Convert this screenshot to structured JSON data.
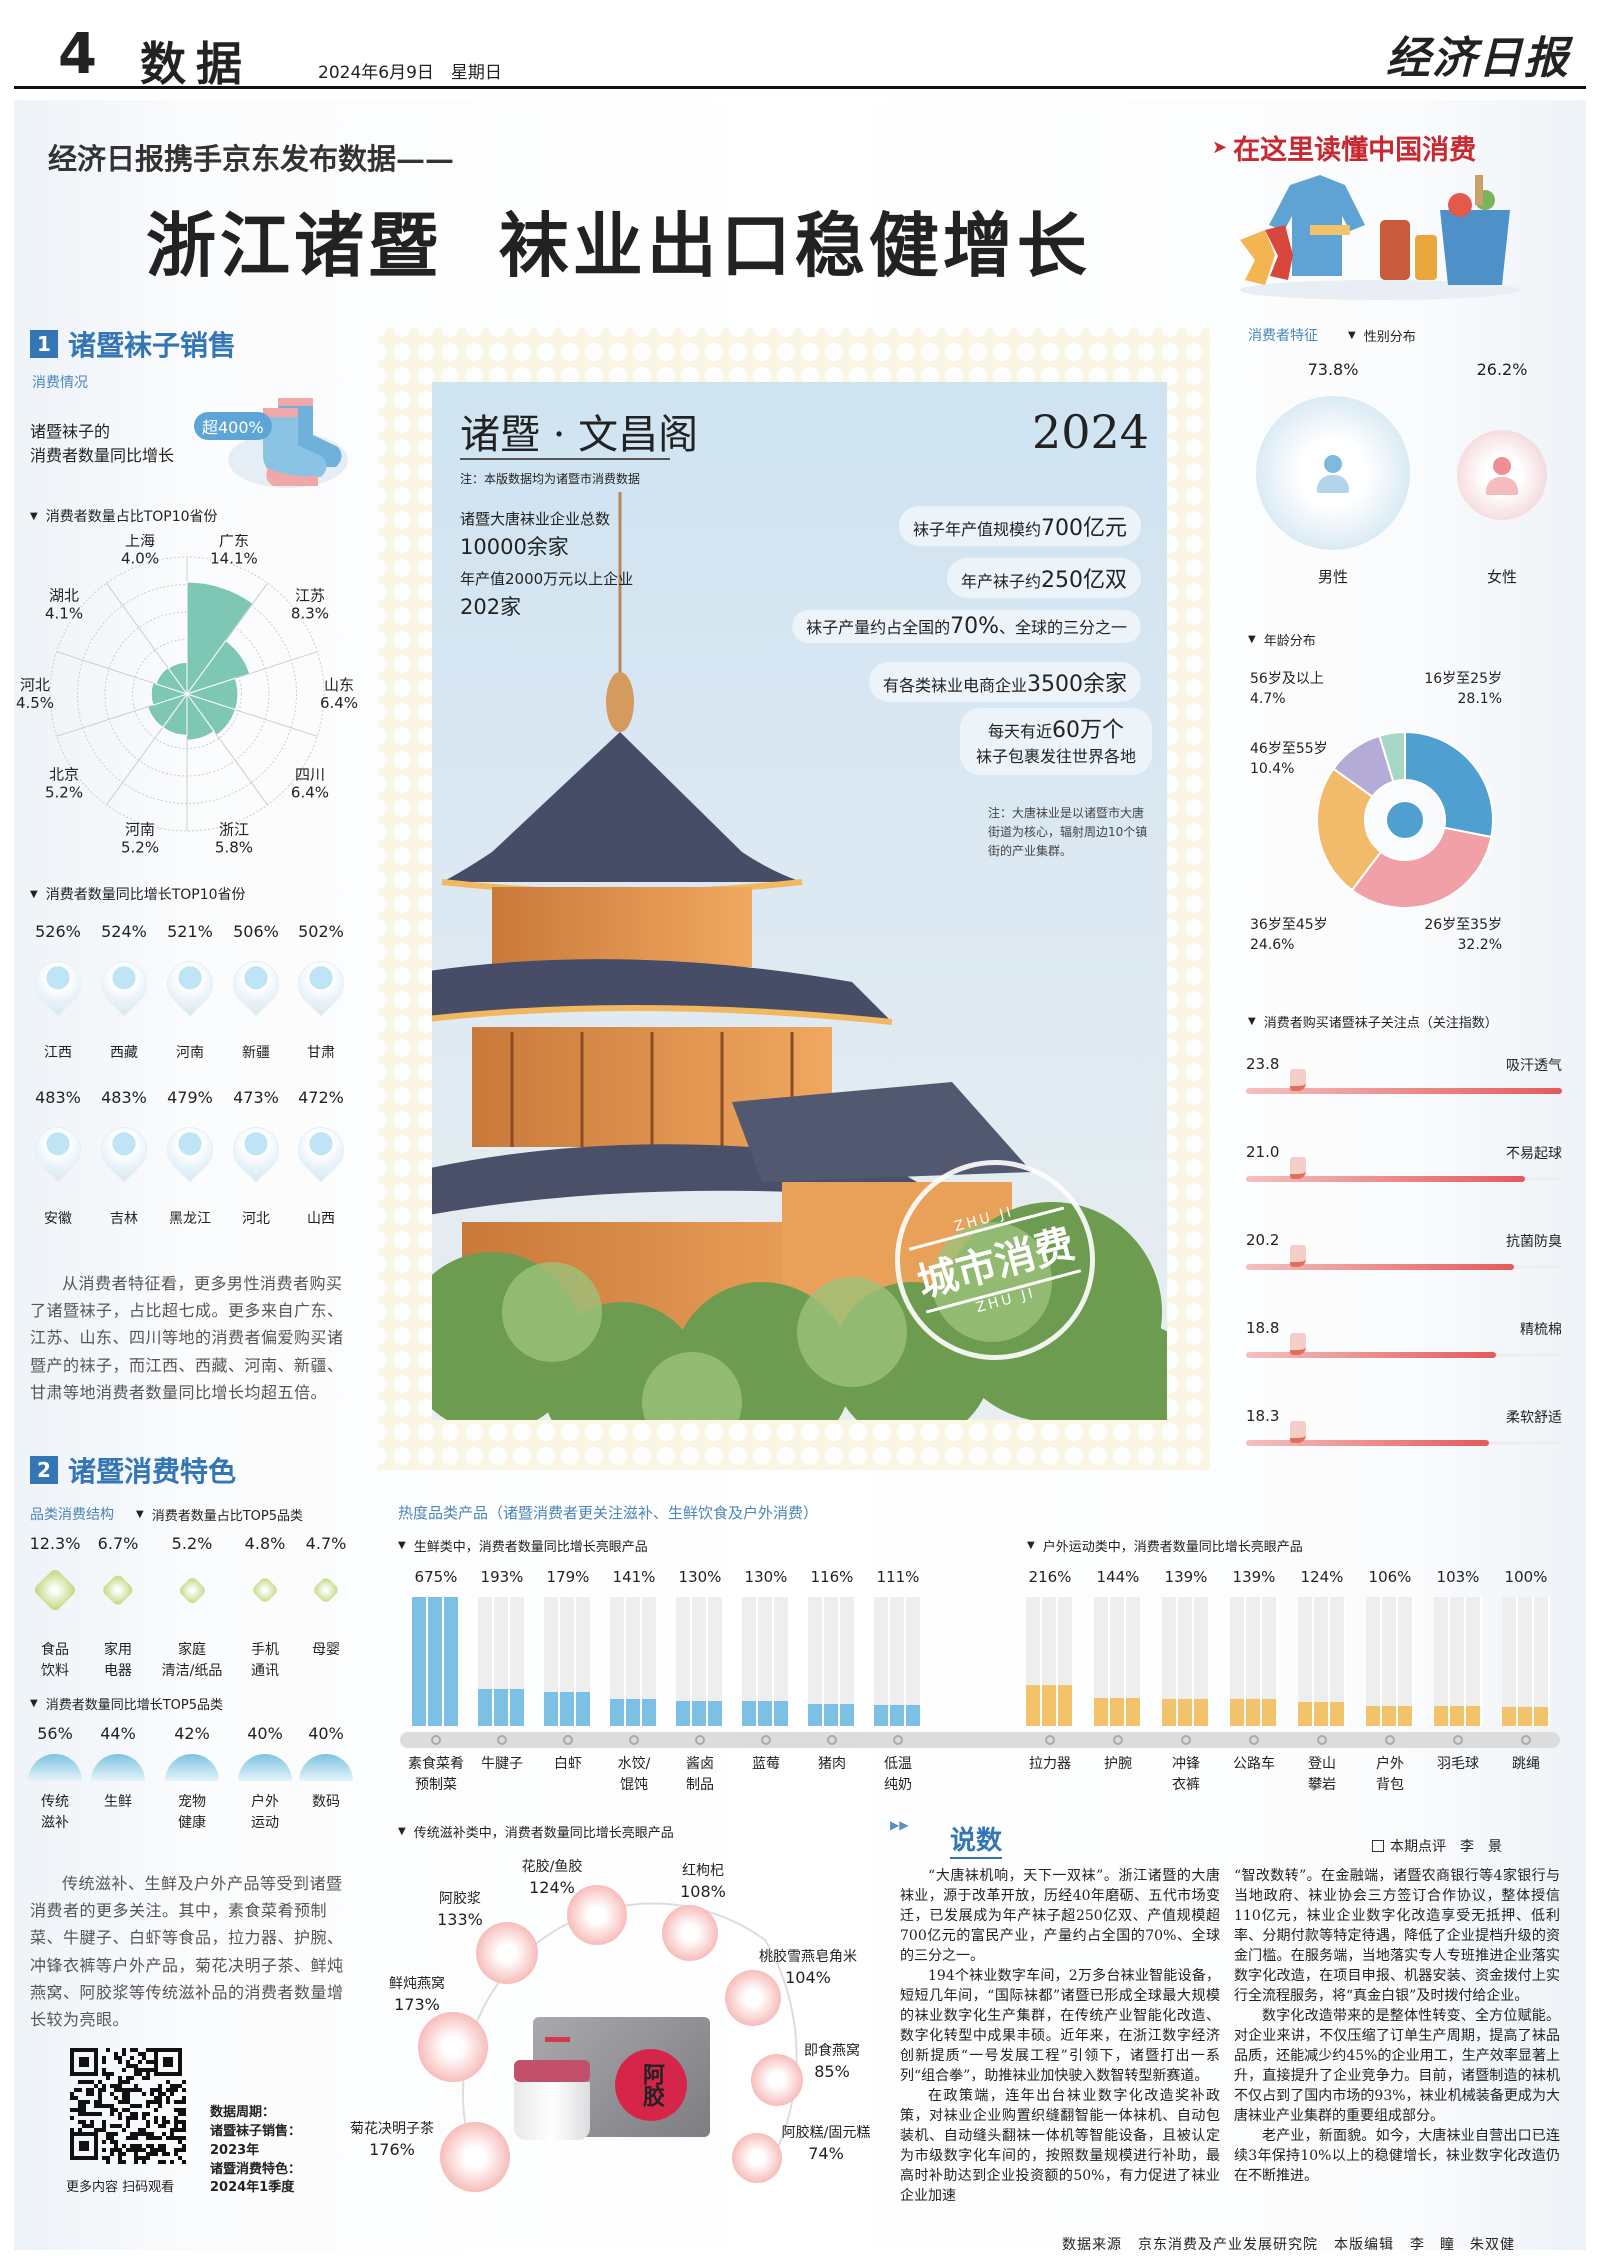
{
  "header": {
    "page_no": "4",
    "section": "数据",
    "date": "2024年6月9日",
    "weekday": "星期日",
    "logo": "经济日报"
  },
  "headline": {
    "kicker": "经济日报携手京东发布数据——",
    "title": "浙江诸暨  袜业出口稳健增长",
    "badge": "在这里读懂中国消费"
  },
  "section1": {
    "num": "1",
    "title": "诸暨袜子销售",
    "sub": "消费情况",
    "growth_line1": "诸暨袜子的",
    "growth_line2": "消费者数量同比增长",
    "growth_badge": "超400%",
    "rose_title": "消费者数量占比TOP10省份",
    "rose": [
      {
        "name": "广东",
        "value": "14.1%"
      },
      {
        "name": "江苏",
        "value": "8.3%"
      },
      {
        "name": "山东",
        "value": "6.4%"
      },
      {
        "name": "四川",
        "value": "6.4%"
      },
      {
        "name": "浙江",
        "value": "5.8%"
      },
      {
        "name": "河南",
        "value": "5.2%"
      },
      {
        "name": "北京",
        "value": "5.2%"
      },
      {
        "name": "河北",
        "value": "4.5%"
      },
      {
        "name": "湖北",
        "value": "4.1%"
      },
      {
        "name": "上海",
        "value": "4.0%"
      }
    ],
    "growth_title": "消费者数量同比增长TOP10省份",
    "growth": [
      {
        "name": "江西",
        "value": "526%"
      },
      {
        "name": "西藏",
        "value": "524%"
      },
      {
        "name": "河南",
        "value": "521%"
      },
      {
        "name": "新疆",
        "value": "506%"
      },
      {
        "name": "甘肃",
        "value": "502%"
      },
      {
        "name": "安徽",
        "value": "483%"
      },
      {
        "name": "吉林",
        "value": "483%"
      },
      {
        "name": "黑龙江",
        "value": "479%"
      },
      {
        "name": "河北",
        "value": "473%"
      },
      {
        "name": "山西",
        "value": "472%"
      }
    ],
    "paragraph": "从消费者特征看，更多男性消费者购买了诸暨袜子，占比超七成。更多来自广东、江苏、山东、四川等地的消费者偏爱购买诸暨产的袜子，而江西、西藏、河南、新疆、甘肃等地消费者数量同比增长均超五倍。"
  },
  "poster": {
    "title": "诸暨 · 文昌阁",
    "year": "2024",
    "note": "注：本版数据均为诸暨市消费数据",
    "stats": [
      {
        "label": "诸暨大唐袜业企业总数",
        "value": "10000余家"
      },
      {
        "label": "年产值2000万元以上企业",
        "value": "202家"
      }
    ],
    "pills": [
      {
        "pre": "袜子年产值规模约",
        "num": "700亿元",
        "post": ""
      },
      {
        "pre": "年产袜子约",
        "num": "250亿双",
        "post": ""
      },
      {
        "pre": "袜子产量约占全国的",
        "num": "70%",
        "post": "、全球的三分之一"
      },
      {
        "pre": "有各类袜业电商企业",
        "num": "3500余家",
        "post": ""
      }
    ],
    "pill_daily_1": "每天有近",
    "pill_daily_num": "60万个",
    "pill_daily_2": "袜子包裹发往世界各地",
    "footnote": "注：大唐袜业是以诸暨市大唐街道为核心，辐射周边10个镇街的产业集群。",
    "seal": {
      "text": "城市消费",
      "ring": "ZHU JI"
    }
  },
  "consumer": {
    "title": "消费者特征",
    "gender_title": "性别分布",
    "gender": [
      {
        "label": "男性",
        "value": "73.8%",
        "color": "#7fb9dc"
      },
      {
        "label": "女性",
        "value": "26.2%",
        "color": "#ef8f93"
      }
    ],
    "age_title": "年龄分布",
    "ages": [
      {
        "label": "16岁至25岁",
        "value": "28.1%",
        "color": "#4f9fd1"
      },
      {
        "label": "26岁至35岁",
        "value": "32.2%",
        "color": "#f0a0a6"
      },
      {
        "label": "36岁至45岁",
        "value": "24.6%",
        "color": "#f2bb6c"
      },
      {
        "label": "46岁至55岁",
        "value": "10.4%",
        "color": "#b4acd6"
      },
      {
        "label": "56岁及以上",
        "value": "4.7%",
        "color": "#a7d8c6"
      }
    ],
    "focus_title": "消费者购买诸暨袜子关注点（关注指数）",
    "focus": [
      {
        "value": "23.8",
        "label": "吸汗透气"
      },
      {
        "value": "21.0",
        "label": "不易起球"
      },
      {
        "value": "20.2",
        "label": "抗菌防臭"
      },
      {
        "value": "18.8",
        "label": "精梳棉"
      },
      {
        "value": "18.3",
        "label": "柔软舒适"
      }
    ]
  },
  "section2": {
    "num": "2",
    "title": "诸暨消费特色",
    "sub": "品类消费结构",
    "share_title": "消费者数量占比TOP5品类",
    "share": [
      {
        "l1": "食品",
        "l2": "饮料",
        "value": "12.3%"
      },
      {
        "l1": "家用",
        "l2": "电器",
        "value": "6.7%"
      },
      {
        "l1": "家庭",
        "l2": "清洁/纸品",
        "value": "5.2%"
      },
      {
        "l1": "手机",
        "l2": "通讯",
        "value": "4.8%"
      },
      {
        "l1": "母婴",
        "l2": "",
        "value": "4.7%"
      }
    ],
    "growth_title": "消费者数量同比增长TOP5品类",
    "growth": [
      {
        "l1": "传统",
        "l2": "滋补",
        "value": "56%"
      },
      {
        "l1": "生鲜",
        "l2": "",
        "value": "44%"
      },
      {
        "l1": "宠物",
        "l2": "健康",
        "value": "42%"
      },
      {
        "l1": "户外",
        "l2": "运动",
        "value": "40%"
      },
      {
        "l1": "数码",
        "l2": "",
        "value": "40%"
      }
    ],
    "paragraph": "传统滋补、生鲜及户外产品等受到诸暨消费者的更多关注。其中，素食菜肴预制菜、牛腱子、白虾等食品，拉力器、护腕、冲锋衣裤等户外产品，菊花决明子茶、鲜炖燕窝、阿胶浆等传统滋补品的消费者数量增长较为亮眼。",
    "qr_caption": "更多内容 扫码观看",
    "period": [
      "数据周期：",
      "诸暨袜子销售：",
      "2023年",
      "诸暨消费特色：",
      "2024年1季度"
    ]
  },
  "hot": {
    "title": "热度品类产品（诸暨消费者更关注滋补、生鲜饮食及户外消费）",
    "fresh_title": "生鲜类中，消费者数量同比增长亮眼产品",
    "fresh": [
      {
        "l1": "素食菜肴",
        "l2": "预制菜",
        "value": "675%"
      },
      {
        "l1": "牛腱子",
        "l2": "",
        "value": "193%"
      },
      {
        "l1": "白虾",
        "l2": "",
        "value": "179%"
      },
      {
        "l1": "水饺/",
        "l2": "馄饨",
        "value": "141%"
      },
      {
        "l1": "酱卤",
        "l2": "制品",
        "value": "130%"
      },
      {
        "l1": "蓝莓",
        "l2": "",
        "value": "130%"
      },
      {
        "l1": "猪肉",
        "l2": "",
        "value": "116%"
      },
      {
        "l1": "低温",
        "l2": "纯奶",
        "value": "111%"
      }
    ],
    "outdoor_title": "户外运动类中，消费者数量同比增长亮眼产品",
    "outdoor": [
      {
        "l1": "拉力器",
        "l2": "",
        "value": "216%"
      },
      {
        "l1": "护腕",
        "l2": "",
        "value": "144%"
      },
      {
        "l1": "冲锋",
        "l2": "衣裤",
        "value": "139%"
      },
      {
        "l1": "公路车",
        "l2": "",
        "value": "139%"
      },
      {
        "l1": "登山",
        "l2": "攀岩",
        "value": "124%"
      },
      {
        "l1": "户外",
        "l2": "背包",
        "value": "106%"
      },
      {
        "l1": "羽毛球",
        "l2": "",
        "value": "103%"
      },
      {
        "l1": "跳绳",
        "l2": "",
        "value": "100%"
      }
    ],
    "fresh_color": "#7cc0e6",
    "outdoor_color": "#f2c36b",
    "tonic_title": "传统滋补类中，消费者数量同比增长亮眼产品",
    "tonic": [
      {
        "label": "菊花决明子茶",
        "value": "176%"
      },
      {
        "label": "鲜炖燕窝",
        "value": "173%"
      },
      {
        "label": "阿胶浆",
        "value": "133%"
      },
      {
        "label": "花胶/鱼胶",
        "value": "124%"
      },
      {
        "label": "红枸杞",
        "value": "108%"
      },
      {
        "label": "桃胶雪燕皂角米",
        "value": "104%"
      },
      {
        "label": "即食燕窝",
        "value": "85%"
      },
      {
        "label": "阿胶糕/固元糕",
        "value": "74%"
      }
    ],
    "box_label": "阿胶"
  },
  "article": {
    "title": "说数",
    "byline": "本期点评　李　景",
    "col1": [
      "“大唐袜机响，天下一双袜”。浙江诸暨的大唐袜业，源于改革开放，历经40年磨砺、五代市场变迁，已发展成为年产袜子超250亿双、产值规模超700亿元的富民产业，产量约占全国的70%、全球的三分之一。",
      "194个袜业数字车间，2万多台袜业智能设备，短短几年间，“国际袜都”诸暨已形成全球最大规模的袜业数字化生产集群，在传统产业智能化改造、数字化转型中成果丰硕。近年来，在浙江数字经济创新提质“一号发展工程”引领下，诸暨打出一系列“组合拳”，助推袜业加快驶入数智转型新赛道。",
      "在政策端，连年出台袜业数字化改造奖补政策，对袜业企业购置织缝翻智能一体袜机、自动包装机、自动缝头翻袜一体机等智能设备，且被认定为市级数字化车间的，按照数量规模进行补助，最高时补助达到企业投资额的50%，有力促进了袜业企业加速"
    ],
    "col2": [
      "“智改数转”。在金融端，诸暨农商银行等4家银行与当地政府、袜业协会三方签订合作协议，整体授信110亿元，袜业企业数字化改造享受无抵押、低利率、分期付款等特定待遇，降低了企业提档升级的资金门槛。在服务端，当地落实专人专班推进企业落实数字化改造，在项目申报、机器安装、资金拨付上实行全流程服务，将“真金白银”及时拨付给企业。",
      "数字化改造带来的是整体性转变、全方位赋能。对企业来讲，不仅压缩了订单生产周期，提高了袜品品质，还能减少约45%的企业用工，生产效率显著上升，直接提升了企业竞争力。目前，诸暨制造的袜机不仅占到了国内市场的93%，袜业机械装备更成为大唐袜业产业集群的重要组成部分。",
      "老产业，新面貌。如今，大唐袜业自营出口已连续3年保持10%以上的稳健增长，袜业数字化改造仍在不断推进。"
    ]
  },
  "footer": {
    "source_label": "数据来源",
    "source": "京东消费及产业发展研究院",
    "editor_label": "本版编辑",
    "editors": "李　瞳　朱双健"
  },
  "colors": {
    "accent": "#3476b5",
    "red": "#c8282f"
  }
}
